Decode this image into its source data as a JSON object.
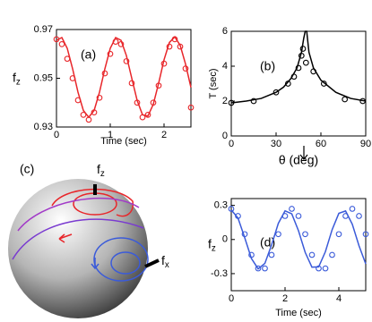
{
  "chart_data": [
    {
      "type": "line",
      "label": "(a)",
      "xlabel": "Time (sec)",
      "ylabel": {
        "text": "f",
        "sub": "z"
      },
      "xlim": [
        0,
        2.5
      ],
      "xticks": [
        0,
        1,
        2
      ],
      "ylim": [
        0.93,
        0.97
      ],
      "yticks": [
        0.93,
        0.95,
        0.97
      ],
      "series": [
        {
          "style": "line",
          "color": "#e8262a",
          "x": [
            0,
            0.1,
            0.2,
            0.3,
            0.4,
            0.5,
            0.6,
            0.7,
            0.8,
            0.9,
            1.0,
            1.1,
            1.2,
            1.3,
            1.4,
            1.5,
            1.6,
            1.7,
            1.8,
            1.9,
            2.0,
            2.1,
            2.2,
            2.3,
            2.4,
            2.5
          ],
          "values": [
            0.9656,
            0.9667,
            0.9623,
            0.9539,
            0.9443,
            0.9368,
            0.934,
            0.9368,
            0.9443,
            0.9539,
            0.9623,
            0.9667,
            0.9656,
            0.9593,
            0.95,
            0.9409,
            0.935,
            0.9345,
            0.9393,
            0.948,
            0.9576,
            0.9647,
            0.967,
            0.9635,
            0.9558,
            0.9462
          ]
        },
        {
          "style": "markers",
          "color": "#e8262a",
          "x": [
            0,
            0.1,
            0.2,
            0.3,
            0.4,
            0.5,
            0.6,
            0.7,
            0.8,
            0.9,
            1.0,
            1.1,
            1.2,
            1.3,
            1.4,
            1.5,
            1.6,
            1.7,
            1.8,
            1.9,
            2.0,
            2.1,
            2.2,
            2.3,
            2.4,
            2.5
          ],
          "values": [
            0.966,
            0.964,
            0.958,
            0.95,
            0.941,
            0.935,
            0.933,
            0.936,
            0.942,
            0.952,
            0.96,
            0.965,
            0.964,
            0.957,
            0.948,
            0.94,
            0.934,
            0.935,
            0.94,
            0.947,
            0.956,
            0.963,
            0.966,
            0.963,
            0.954,
            0.938
          ]
        }
      ]
    },
    {
      "type": "line",
      "label": "(b)",
      "xlabel": "θ (deg)",
      "ylabel": "T (sec)",
      "xlim": [
        0,
        90
      ],
      "xticks": [
        0,
        30,
        60,
        90
      ],
      "ylim": [
        0,
        6
      ],
      "yticks": [
        0,
        2,
        4,
        6
      ],
      "series": [
        {
          "style": "line",
          "color": "#000000",
          "x": [
            0,
            10,
            20,
            30,
            35,
            40,
            44,
            47,
            48.5,
            49.5,
            50.5,
            52,
            55,
            60,
            70,
            80,
            90
          ],
          "values": [
            1.9,
            2.0,
            2.15,
            2.5,
            2.8,
            3.3,
            3.9,
            4.8,
            5.6,
            6,
            6,
            4.8,
            3.9,
            3.2,
            2.5,
            2.15,
            2.0
          ]
        },
        {
          "style": "markers",
          "color": "#000000",
          "x": [
            0,
            15,
            30,
            38,
            42,
            45,
            47,
            48,
            50,
            55,
            62,
            76,
            88
          ],
          "values": [
            1.9,
            2.0,
            2.5,
            3.0,
            3.4,
            3.9,
            4.6,
            5.0,
            4.2,
            3.7,
            3.0,
            2.1,
            2.0
          ]
        }
      ]
    },
    {
      "type": "illustration",
      "label": "(c)",
      "annotations": [
        {
          "text": "f",
          "sub": "z"
        },
        {
          "text": "f",
          "sub": "x"
        }
      ]
    },
    {
      "type": "line",
      "label": "(d)",
      "xlabel": "Time (sec)",
      "ylabel": {
        "text": "f",
        "sub": "z"
      },
      "xlim": [
        0,
        5
      ],
      "xticks": [
        0,
        2,
        4
      ],
      "ylim": [
        -0.45,
        0.36
      ],
      "yticks": [
        -0.3,
        0,
        0.3
      ],
      "series": [
        {
          "style": "line",
          "color": "#3b5bd9",
          "x": [
            0,
            0.25,
            0.5,
            0.75,
            1,
            1.25,
            1.5,
            1.75,
            2,
            2.25,
            2.5,
            2.75,
            3,
            3.25,
            3.5,
            3.75,
            4,
            4.25,
            4.5,
            4.75,
            5
          ],
          "values": [
            0.26,
            0.189,
            0.016,
            -0.167,
            -0.258,
            -0.21,
            -0.047,
            0.142,
            0.252,
            0.226,
            0.077,
            -0.114,
            -0.243,
            -0.241,
            -0.107,
            0.086,
            0.23,
            0.251,
            0.135,
            -0.055,
            -0.214
          ]
        },
        {
          "style": "markers",
          "color": "#3b5bd9",
          "x": [
            0,
            0.25,
            0.5,
            0.75,
            1,
            1.25,
            1.5,
            1.75,
            2,
            2.25,
            2.5,
            2.75,
            3,
            3.25,
            3.5,
            3.75,
            4,
            4.25,
            4.5,
            4.75,
            5
          ],
          "values": [
            0.27,
            0.207,
            0.047,
            -0.135,
            -0.254,
            -0.254,
            -0.135,
            0.047,
            0.207,
            0.27,
            0.207,
            0.047,
            -0.135,
            -0.254,
            -0.254,
            -0.135,
            0.047,
            0.207,
            0.27,
            0.207,
            0.047
          ]
        }
      ]
    }
  ]
}
